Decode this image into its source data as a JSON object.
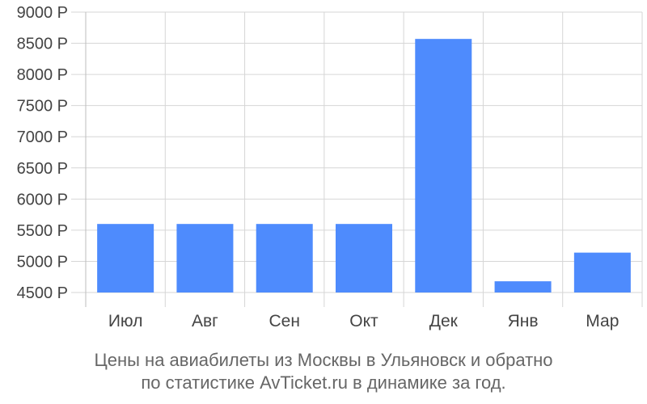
{
  "chart_data": {
    "type": "bar",
    "categories": [
      "Июл",
      "Авг",
      "Сен",
      "Окт",
      "Дек",
      "Янв",
      "Мар"
    ],
    "values": [
      5600,
      5600,
      5600,
      5600,
      8570,
      4680,
      5140
    ],
    "ylim": [
      4500,
      9000
    ],
    "yticks": [
      4500,
      5000,
      5500,
      6000,
      6500,
      7000,
      7500,
      8000,
      8500,
      9000
    ],
    "ytick_labels": [
      "4500 Р",
      "5000 Р",
      "5500 Р",
      "6000 Р",
      "6500 Р",
      "7000 Р",
      "7500 Р",
      "8000 Р",
      "8500 Р",
      "9000 Р"
    ],
    "grid": true,
    "bar_color": "#4e8bfd"
  },
  "caption": {
    "line1": "Цены на авиабилеты из Москвы в Ульяновск и обратно",
    "line2": "по статистике AvTicket.ru в динамике за год."
  }
}
